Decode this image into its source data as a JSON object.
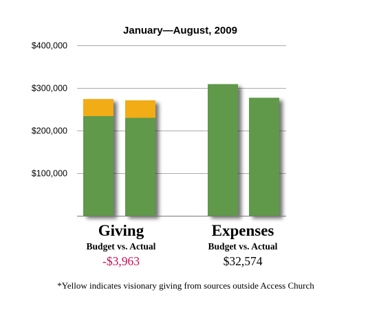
{
  "chart_data": {
    "type": "bar",
    "stacked": true,
    "title": "January—August, 2009",
    "ylim": [
      0,
      400000
    ],
    "yticks": [
      100000,
      200000,
      300000,
      400000
    ],
    "ytick_labels": [
      "$100,000",
      "$200,000",
      "$300,000",
      "$400,000"
    ],
    "grid": true,
    "groups": [
      {
        "label": "Giving",
        "sublabel": "Budget vs. Actual",
        "difference": "-$3,963",
        "bars": [
          {
            "base": 234000,
            "top": 40000
          },
          {
            "base": 230000,
            "top": 41000
          }
        ]
      },
      {
        "label": "Expenses",
        "sublabel": "Budget vs. Actual",
        "difference": "$32,574",
        "bars": [
          {
            "base": 309000,
            "top": 0
          },
          {
            "base": 277000,
            "top": 0
          }
        ]
      }
    ],
    "colors": {
      "base": "#5f994a",
      "top": "#f2ac13",
      "negative": "#cc1055",
      "positive": "#000000",
      "grid": "#aaaaaa"
    },
    "footnote": "*Yellow indicates visionary giving from sources outside Access Church"
  }
}
